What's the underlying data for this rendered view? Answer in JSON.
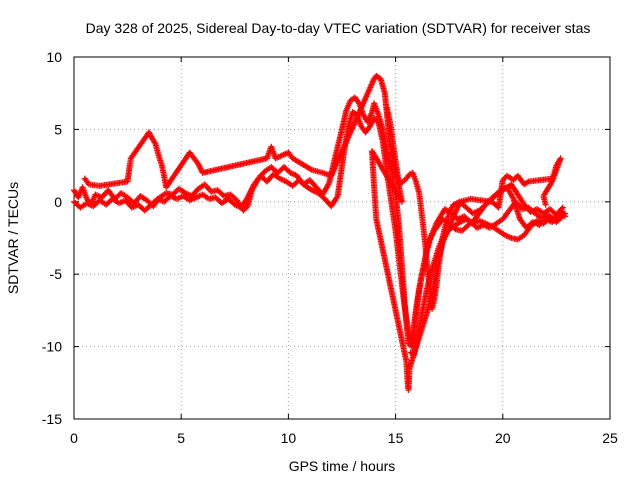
{
  "chart_data": {
    "type": "scatter",
    "title": "Day 328 of 2025, Sidereal Day-to-day VTEC variation (SDTVAR) for receiver stas",
    "xlabel": "GPS time / hours",
    "ylabel": "SDTVAR / TECUs",
    "xlim": [
      0,
      25
    ],
    "ylim": [
      -15,
      10
    ],
    "xticks": [
      0,
      5,
      10,
      15,
      20,
      25
    ],
    "yticks": [
      10,
      5,
      0,
      -5,
      -10,
      -15
    ],
    "xtick_labels": [
      "0",
      "5",
      "10",
      "15",
      "20",
      "25"
    ],
    "ytick_labels": [
      "10",
      "5",
      "0",
      "-5",
      "-10",
      "-15"
    ],
    "grid": true,
    "marker": "+",
    "color": "#ff0000",
    "series": [
      {
        "name": "trace-main",
        "points": [
          [
            0.0,
            0.8
          ],
          [
            0.2,
            0.3
          ],
          [
            0.4,
            1.0
          ],
          [
            0.6,
            0.2
          ],
          [
            0.8,
            -0.2
          ],
          [
            1.0,
            0.5
          ],
          [
            1.3,
            0.3
          ],
          [
            1.6,
            0.8
          ],
          [
            1.9,
            0.2
          ],
          [
            2.2,
            0.6
          ],
          [
            2.5,
            0.3
          ],
          [
            2.8,
            -0.1
          ],
          [
            3.1,
            0.4
          ],
          [
            3.4,
            0.1
          ],
          [
            3.7,
            -0.3
          ],
          [
            4.0,
            0.3
          ],
          [
            4.3,
            0.6
          ],
          [
            4.6,
            0.5
          ],
          [
            4.9,
            0.9
          ],
          [
            5.2,
            0.6
          ],
          [
            5.5,
            0.4
          ],
          [
            5.8,
            0.9
          ],
          [
            6.1,
            1.2
          ],
          [
            6.4,
            0.7
          ],
          [
            6.7,
            0.8
          ],
          [
            7.0,
            0.4
          ],
          [
            7.3,
            0.5
          ],
          [
            7.6,
            0.1
          ],
          [
            7.9,
            -0.6
          ],
          [
            8.1,
            -0.3
          ],
          [
            8.3,
            0.8
          ],
          [
            8.6,
            1.6
          ],
          [
            8.9,
            2.1
          ],
          [
            9.2,
            2.4
          ],
          [
            9.5,
            2.0
          ],
          [
            9.8,
            2.4
          ],
          [
            10.1,
            2.0
          ],
          [
            10.4,
            1.8
          ],
          [
            10.7,
            1.2
          ],
          [
            11.0,
            1.5
          ],
          [
            11.3,
            1.0
          ],
          [
            11.6,
            0.5
          ],
          [
            11.9,
            1.3
          ],
          [
            12.2,
            3.2
          ],
          [
            12.5,
            5.0
          ],
          [
            12.7,
            6.3
          ],
          [
            12.9,
            7.0
          ],
          [
            13.1,
            7.2
          ],
          [
            13.3,
            6.8
          ],
          [
            13.5,
            6.0
          ],
          [
            13.7,
            5.5
          ],
          [
            13.9,
            6.2
          ],
          [
            14.0,
            6.8
          ],
          [
            14.2,
            6.0
          ],
          [
            14.4,
            5.0
          ],
          [
            14.6,
            3.5
          ],
          [
            14.8,
            2.2
          ],
          [
            15.0,
            0.5
          ],
          [
            15.15,
            -1.5
          ],
          [
            15.3,
            -4.5
          ],
          [
            15.45,
            -7.5
          ],
          [
            15.6,
            -9.8
          ],
          [
            15.75,
            -10.0
          ],
          [
            15.9,
            -8.0
          ],
          [
            16.1,
            -6.0
          ],
          [
            16.3,
            -4.5
          ],
          [
            16.5,
            -3.0
          ],
          [
            16.7,
            -2.2
          ],
          [
            16.9,
            -1.5
          ],
          [
            17.1,
            -1.0
          ],
          [
            17.3,
            -0.5
          ],
          [
            17.6,
            -0.8
          ],
          [
            17.9,
            -1.2
          ],
          [
            18.2,
            -1.0
          ],
          [
            18.5,
            -1.4
          ],
          [
            18.8,
            -1.8
          ],
          [
            19.1,
            -1.6
          ],
          [
            19.4,
            -1.8
          ],
          [
            19.7,
            -1.5
          ],
          [
            20.0,
            -1.2
          ],
          [
            20.3,
            -0.6
          ],
          [
            20.6,
            0.0
          ],
          [
            20.9,
            -0.5
          ],
          [
            21.2,
            -0.4
          ],
          [
            21.5,
            -0.8
          ],
          [
            21.8,
            -1.1
          ],
          [
            22.1,
            -0.9
          ],
          [
            22.4,
            -1.2
          ],
          [
            22.7,
            -0.6
          ],
          [
            22.9,
            -1.0
          ]
        ]
      },
      {
        "name": "trace-secondary",
        "points": [
          [
            0.0,
            0.0
          ],
          [
            0.3,
            -0.4
          ],
          [
            0.6,
            -0.1
          ],
          [
            0.9,
            -0.3
          ],
          [
            1.2,
            0.1
          ],
          [
            1.5,
            -0.2
          ],
          [
            1.8,
            0.2
          ],
          [
            2.1,
            -0.1
          ],
          [
            2.4,
            0.1
          ],
          [
            2.7,
            -0.4
          ],
          [
            3.0,
            -0.2
          ],
          [
            3.3,
            -0.6
          ],
          [
            3.6,
            -0.2
          ],
          [
            3.9,
            0.2
          ],
          [
            4.2,
            0.0
          ],
          [
            4.5,
            0.4
          ],
          [
            4.8,
            0.2
          ],
          [
            5.1,
            0.4
          ],
          [
            5.4,
            0.1
          ],
          [
            5.7,
            0.3
          ],
          [
            6.0,
            0.5
          ],
          [
            6.3,
            0.2
          ],
          [
            6.6,
            0.3
          ],
          [
            6.9,
            -0.1
          ],
          [
            7.2,
            0.2
          ],
          [
            7.5,
            -0.2
          ],
          [
            7.8,
            -0.4
          ],
          [
            8.1,
            0.3
          ],
          [
            8.4,
            1.2
          ],
          [
            8.7,
            1.8
          ],
          [
            9.0,
            1.4
          ],
          [
            9.3,
            1.9
          ],
          [
            9.6,
            1.6
          ],
          [
            9.9,
            1.4
          ],
          [
            10.2,
            1.1
          ],
          [
            10.5,
            1.5
          ],
          [
            10.8,
            1.1
          ],
          [
            11.1,
            0.8
          ],
          [
            11.4,
            0.6
          ],
          [
            11.7,
            0.2
          ],
          [
            12.0,
            -0.3
          ],
          [
            12.3,
            0.4
          ],
          [
            12.6,
            3.5
          ],
          [
            12.8,
            5.2
          ],
          [
            13.0,
            6.2
          ],
          [
            13.2,
            6.0
          ],
          [
            13.4,
            5.2
          ],
          [
            13.6,
            4.8
          ],
          [
            13.8,
            5.2
          ],
          [
            14.0,
            5.8
          ],
          [
            14.2,
            5.5
          ],
          [
            14.4,
            4.2
          ],
          [
            14.6,
            2.0
          ],
          [
            14.8,
            0.0
          ],
          [
            15.0,
            -2.0
          ],
          [
            15.2,
            -4.5
          ],
          [
            15.4,
            -7.0
          ],
          [
            15.6,
            -9.0
          ],
          [
            15.8,
            -9.8
          ],
          [
            16.0,
            -7.2
          ],
          [
            16.2,
            -5.2
          ],
          [
            16.4,
            -3.8
          ],
          [
            16.6,
            -2.6
          ],
          [
            16.8,
            -2.0
          ],
          [
            17.0,
            -1.6
          ],
          [
            17.2,
            -1.2
          ],
          [
            17.5,
            -1.5
          ],
          [
            17.8,
            -1.9
          ],
          [
            18.1,
            -2.0
          ],
          [
            18.4,
            -1.6
          ],
          [
            18.7,
            -1.2
          ],
          [
            19.0,
            -0.6
          ],
          [
            19.3,
            0.0
          ],
          [
            19.6,
            0.4
          ],
          [
            19.9,
            0.8
          ],
          [
            20.2,
            1.0
          ],
          [
            20.5,
            0.2
          ],
          [
            20.8,
            -1.2
          ],
          [
            21.1,
            -1.8
          ],
          [
            21.4,
            -1.4
          ],
          [
            21.7,
            -1.6
          ],
          [
            22.0,
            -1.2
          ],
          [
            22.3,
            -1.4
          ],
          [
            22.6,
            -0.9
          ],
          [
            22.9,
            -0.8
          ]
        ]
      },
      {
        "name": "trace-spikes",
        "points": [
          [
            0.5,
            1.6
          ],
          [
            0.7,
            1.2
          ],
          [
            1.2,
            1.1
          ],
          [
            2.5,
            1.4
          ],
          [
            2.6,
            2.5
          ],
          [
            2.65,
            3.0
          ],
          [
            3.5,
            4.8
          ],
          [
            3.6,
            4.5
          ],
          [
            3.8,
            4.0
          ],
          [
            3.95,
            3.2
          ],
          [
            4.1,
            2.5
          ],
          [
            4.2,
            1.8
          ],
          [
            4.3,
            1.0
          ],
          [
            5.4,
            3.4
          ],
          [
            5.8,
            2.6
          ],
          [
            6.0,
            2.0
          ],
          [
            9.0,
            3.0
          ],
          [
            9.2,
            3.8
          ],
          [
            9.4,
            3.0
          ],
          [
            10.0,
            3.4
          ],
          [
            10.2,
            3.0
          ],
          [
            11.1,
            2.2
          ],
          [
            11.6,
            2.0
          ],
          [
            12.0,
            1.8
          ],
          [
            14.0,
            8.5
          ],
          [
            14.1,
            8.7
          ],
          [
            14.3,
            8.5
          ],
          [
            14.5,
            7.5
          ],
          [
            14.7,
            4.5
          ],
          [
            14.9,
            2.5
          ],
          [
            15.1,
            1.5
          ],
          [
            15.3,
            0.0
          ],
          [
            13.9,
            3.5
          ],
          [
            14.0,
            1.0
          ],
          [
            14.1,
            -1.2
          ],
          [
            15.5,
            -11.0
          ],
          [
            15.55,
            -12.2
          ],
          [
            15.6,
            -13.0
          ],
          [
            15.65,
            -11.5
          ],
          [
            16.6,
            -7.0
          ],
          [
            16.8,
            -5.5
          ],
          [
            17.0,
            -4.0
          ],
          [
            17.2,
            -2.8
          ],
          [
            18.0,
            0.0
          ],
          [
            18.5,
            0.2
          ],
          [
            19.5,
            0.0
          ],
          [
            19.8,
            -0.4
          ],
          [
            20.0,
            1.5
          ],
          [
            20.2,
            1.8
          ],
          [
            20.5,
            1.5
          ],
          [
            20.7,
            1.8
          ],
          [
            21.0,
            1.2
          ],
          [
            21.2,
            1.4
          ],
          [
            22.3,
            1.6
          ],
          [
            22.4,
            2.0
          ],
          [
            22.5,
            2.5
          ],
          [
            22.7,
            3.0
          ],
          [
            22.3,
            1.4
          ],
          [
            21.9,
            0.4
          ],
          [
            22.0,
            -0.2
          ]
        ]
      },
      {
        "name": "trace-band-upper",
        "points": [
          [
            14.6,
            6.5
          ],
          [
            14.7,
            5.8
          ],
          [
            14.8,
            5.0
          ],
          [
            14.9,
            3.8
          ],
          [
            15.0,
            2.8
          ],
          [
            15.1,
            1.8
          ],
          [
            15.2,
            1.2
          ],
          [
            15.35,
            1.4
          ],
          [
            15.5,
            1.6
          ],
          [
            15.65,
            1.9
          ],
          [
            15.8,
            2.0
          ],
          [
            15.95,
            1.4
          ],
          [
            16.1,
            0.6
          ],
          [
            16.2,
            -0.6
          ],
          [
            16.3,
            -1.8
          ],
          [
            16.4,
            -3.2
          ],
          [
            16.5,
            -4.8
          ],
          [
            16.6,
            -6.2
          ],
          [
            16.7,
            -7.4
          ],
          [
            16.8,
            -6.8
          ],
          [
            16.9,
            -5.8
          ],
          [
            17.0,
            -4.6
          ],
          [
            17.1,
            -3.4
          ],
          [
            17.2,
            -2.4
          ],
          [
            17.3,
            -1.8
          ],
          [
            17.5,
            -0.8
          ],
          [
            17.7,
            -0.2
          ],
          [
            18.0,
            0.0
          ],
          [
            18.3,
            -0.4
          ],
          [
            18.6,
            -0.8
          ],
          [
            18.9,
            -0.6
          ],
          [
            19.2,
            -0.2
          ],
          [
            19.5,
            0.2
          ],
          [
            19.8,
            0.6
          ],
          [
            20.1,
            0.9
          ],
          [
            20.4,
            1.2
          ],
          [
            20.7,
            0.5
          ],
          [
            21.0,
            -0.2
          ],
          [
            21.3,
            -0.7
          ],
          [
            21.6,
            -0.5
          ],
          [
            21.9,
            -0.8
          ],
          [
            22.2,
            -0.5
          ],
          [
            22.5,
            -0.9
          ],
          [
            22.8,
            -0.4
          ]
        ]
      },
      {
        "name": "trace-band-lower",
        "points": [
          [
            15.7,
            -10.4
          ],
          [
            15.85,
            -10.6
          ],
          [
            16.0,
            -9.6
          ],
          [
            16.15,
            -8.4
          ],
          [
            16.3,
            -7.2
          ],
          [
            16.45,
            -6.1
          ],
          [
            16.6,
            -5.2
          ],
          [
            16.75,
            -4.4
          ],
          [
            16.9,
            -3.7
          ],
          [
            17.05,
            -3.0
          ],
          [
            17.2,
            -2.5
          ],
          [
            17.4,
            -2.1
          ],
          [
            17.6,
            -1.8
          ],
          [
            17.8,
            -1.6
          ],
          [
            18.0,
            -1.4
          ],
          [
            18.3,
            -1.2
          ],
          [
            18.6,
            -1.5
          ],
          [
            18.9,
            -1.3
          ],
          [
            19.2,
            -1.5
          ],
          [
            19.5,
            -1.7
          ],
          [
            19.8,
            -2.0
          ],
          [
            20.1,
            -2.3
          ],
          [
            20.4,
            -2.5
          ],
          [
            20.7,
            -2.6
          ],
          [
            21.0,
            -2.3
          ],
          [
            21.3,
            -1.7
          ],
          [
            21.6,
            -1.3
          ],
          [
            21.9,
            -1.5
          ],
          [
            22.2,
            -1.1
          ],
          [
            22.5,
            -1.4
          ],
          [
            22.8,
            -1.0
          ]
        ]
      }
    ]
  }
}
